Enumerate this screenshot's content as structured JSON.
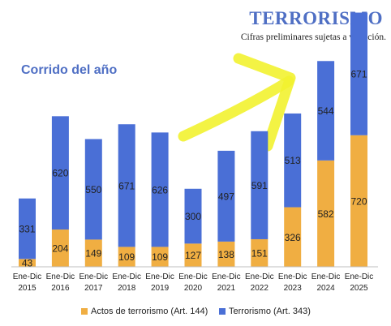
{
  "chart_data": {
    "type": "bar",
    "stacked": true,
    "title": "TERRORISMO",
    "subtitle": "Cifras preliminares sujetas a variación.",
    "period_label": "Corrido del año",
    "categories": [
      "Ene-Dic 2015",
      "Ene-Dic 2016",
      "Ene-Dic 2017",
      "Ene-Dic 2018",
      "Ene-Dic 2019",
      "Ene-Dic 2020",
      "Ene-Dic 2021",
      "Ene-Dic 2022",
      "Ene-Dic 2023",
      "Ene-Dic 2024",
      "Ene-Dic 2025"
    ],
    "category_lines": [
      [
        "Ene-Dic",
        "2015"
      ],
      [
        "Ene-Dic",
        "2016"
      ],
      [
        "Ene-Dic",
        "2017"
      ],
      [
        "Ene-Dic",
        "2018"
      ],
      [
        "Ene-Dic",
        "2019"
      ],
      [
        "Ene-Dic",
        "2020"
      ],
      [
        "Ene-Dic",
        "2021"
      ],
      [
        "Ene-Dic",
        "2022"
      ],
      [
        "Ene-Dic",
        "2023"
      ],
      [
        "Ene-Dic",
        "2024"
      ],
      [
        "Ene-Dic",
        "2025"
      ]
    ],
    "series": [
      {
        "name": "Actos de terrorismo (Art. 144)",
        "color": "#f0ae42",
        "values": [
          43,
          204,
          149,
          109,
          109,
          127,
          138,
          151,
          326,
          582,
          720
        ]
      },
      {
        "name": "Terrorismo (Art. 343)",
        "color": "#4a6fd6",
        "values": [
          331,
          620,
          550,
          671,
          626,
          300,
          497,
          591,
          513,
          544,
          671
        ]
      }
    ],
    "ylim": [
      0,
      1460
    ],
    "grid": false,
    "legend_position": "bottom",
    "annotation": {
      "type": "highlighter-arrow",
      "color": "#f2f230"
    }
  }
}
